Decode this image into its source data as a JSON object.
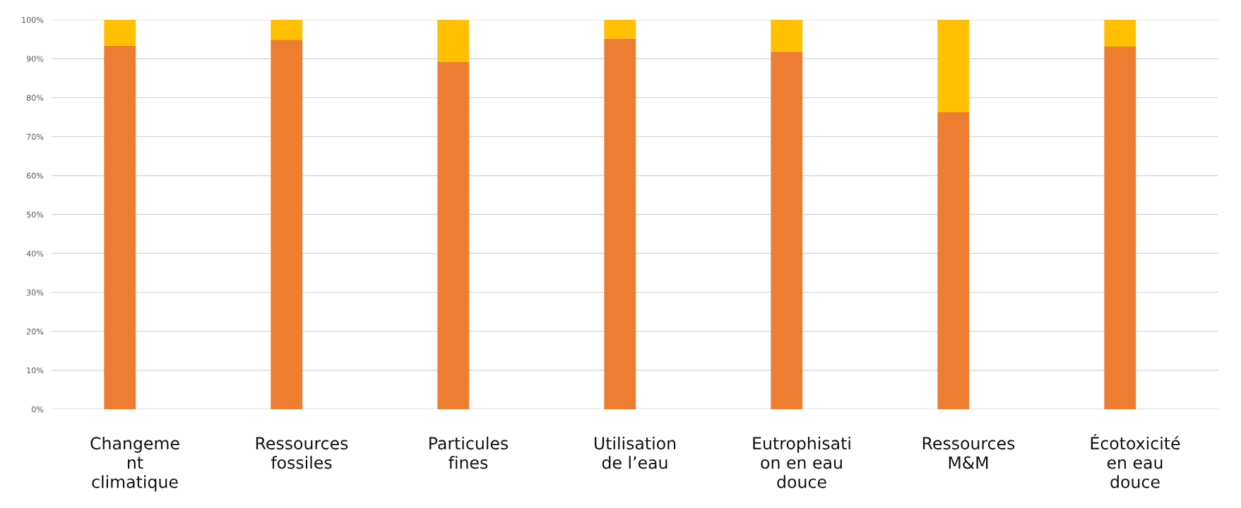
{
  "chart_data": {
    "type": "bar",
    "stacked": true,
    "categories": [
      "Changeme\nnt\nclimatique",
      "Ressources\nfossiles",
      "Particules\nfines",
      "Utilisation\nde l’eau",
      "Eutrophisati\non en eau\ndouce",
      "Ressources\nM&M",
      "Écotoxicité\nen eau\ndouce"
    ],
    "series": [
      {
        "color": "#ed7d31",
        "values": [
          93.4,
          94.9,
          89.2,
          95.2,
          91.8,
          76.3,
          93.1
        ]
      },
      {
        "color": "#ffc000",
        "values": [
          6.6,
          5.1,
          10.8,
          4.8,
          8.2,
          23.7,
          6.9
        ]
      }
    ],
    "ylim": [
      0,
      100
    ],
    "yticks": [
      {
        "value": 0,
        "label": "0%"
      },
      {
        "value": 10,
        "label": "10%"
      },
      {
        "value": 20,
        "label": "20%"
      },
      {
        "value": 30,
        "label": "30%"
      },
      {
        "value": 40,
        "label": "40%"
      },
      {
        "value": 50,
        "label": "50%"
      },
      {
        "value": 60,
        "label": "60%"
      },
      {
        "value": 70,
        "label": "70%"
      },
      {
        "value": 80,
        "label": "80%"
      },
      {
        "value": 90,
        "label": "90%"
      },
      {
        "value": 100,
        "label": "100%"
      }
    ],
    "grid": "y",
    "legend": false
  }
}
